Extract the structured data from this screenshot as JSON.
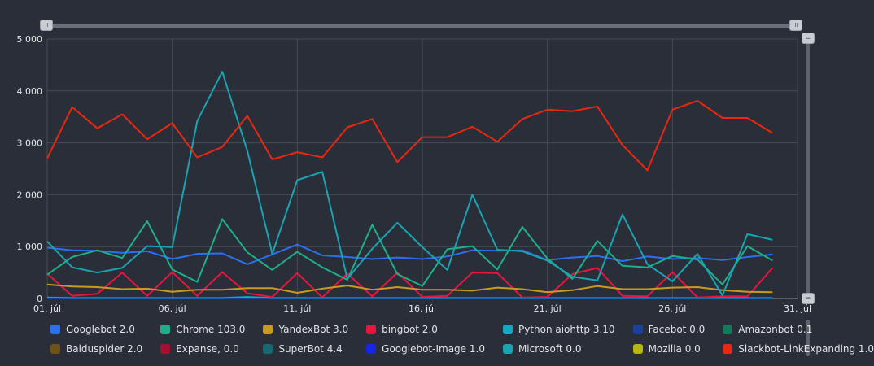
{
  "chart_data": {
    "type": "line",
    "ylim": [
      0,
      5000
    ],
    "yticks": [
      0,
      1000,
      2000,
      3000,
      4000,
      5000
    ],
    "ytick_labels": [
      "0",
      "1 000",
      "2 000",
      "3 000",
      "4 000",
      "5 000"
    ],
    "xtick_labels": [
      "01. júl",
      "06. júl",
      "11. júl",
      "16. júl",
      "21. júl",
      "26. júl",
      "31. júl"
    ],
    "x": [
      1,
      2,
      3,
      4,
      5,
      6,
      7,
      8,
      9,
      10,
      11,
      12,
      13,
      14,
      15,
      16,
      17,
      18,
      19,
      20,
      21,
      22,
      23,
      24,
      25,
      26,
      27,
      28,
      29,
      30,
      31
    ],
    "grid": true,
    "legend_position": "bottom",
    "series": [
      {
        "name": "Slackbot-LinkExpanding 1.0",
        "color": "#e8280f",
        "values": [
          2700,
          3690,
          3280,
          3550,
          3070,
          3380,
          2720,
          2920,
          3520,
          2680,
          2820,
          2720,
          3300,
          3460,
          2630,
          3110,
          3110,
          3310,
          3020,
          3460,
          3640,
          3610,
          3700,
          2960,
          2470,
          3640,
          3810,
          3480,
          3480,
          3190,
          null
        ]
      },
      {
        "name": "Microsoft 0.0",
        "color": "#1aa3b3",
        "values": [
          1100,
          600,
          500,
          590,
          1010,
          990,
          3420,
          4370,
          2850,
          860,
          2280,
          2440,
          380,
          960,
          1460,
          990,
          550,
          2000,
          940,
          910,
          730,
          420,
          350,
          1620,
          660,
          330,
          860,
          60,
          1240,
          1130,
          null
        ]
      },
      {
        "name": "Chrome 103.0",
        "color": "#1fae8c",
        "values": [
          460,
          800,
          930,
          780,
          1490,
          560,
          320,
          1530,
          890,
          550,
          900,
          600,
          360,
          1420,
          470,
          240,
          950,
          1010,
          560,
          1380,
          770,
          380,
          1110,
          630,
          600,
          820,
          750,
          270,
          1010,
          730,
          null
        ]
      },
      {
        "name": "Googlebot 2.0",
        "color": "#2d6ff0",
        "values": [
          980,
          930,
          920,
          880,
          910,
          760,
          860,
          870,
          660,
          850,
          1040,
          830,
          800,
          760,
          790,
          760,
          810,
          930,
          920,
          930,
          740,
          790,
          820,
          720,
          810,
          760,
          780,
          740,
          800,
          850,
          null
        ]
      },
      {
        "name": "YandexBot 3.0",
        "color": "#c99a22",
        "values": [
          270,
          230,
          220,
          180,
          190,
          130,
          170,
          170,
          200,
          200,
          110,
          190,
          250,
          170,
          220,
          170,
          170,
          150,
          210,
          180,
          120,
          160,
          240,
          180,
          180,
          210,
          220,
          160,
          130,
          120,
          null
        ]
      },
      {
        "name": "bingbot 2.0",
        "color": "#e8153e",
        "values": [
          480,
          50,
          90,
          500,
          50,
          510,
          50,
          510,
          100,
          30,
          490,
          20,
          480,
          40,
          500,
          30,
          50,
          500,
          490,
          20,
          30,
          470,
          590,
          50,
          40,
          510,
          20,
          40,
          40,
          590,
          null
        ]
      },
      {
        "name": "Python aiohttp 3.10",
        "color": "#14a9c2",
        "values": [
          20,
          10,
          10,
          10,
          10,
          10,
          10,
          10,
          30,
          10,
          10,
          10,
          10,
          10,
          10,
          10,
          10,
          10,
          10,
          10,
          10,
          10,
          10,
          10,
          10,
          10,
          10,
          10,
          10,
          10,
          null
        ]
      },
      {
        "name": "Facebot 0.0",
        "color": "#1b3f9c",
        "values": [
          0,
          0,
          0,
          0,
          0,
          0,
          0,
          0,
          0,
          0,
          0,
          0,
          0,
          0,
          0,
          0,
          0,
          0,
          0,
          0,
          0,
          0,
          0,
          0,
          0,
          0,
          0,
          0,
          0,
          0,
          null
        ]
      },
      {
        "name": "Amazonbot 0.1",
        "color": "#127a5a",
        "values": [
          0,
          0,
          0,
          0,
          0,
          0,
          0,
          0,
          0,
          0,
          0,
          0,
          0,
          0,
          0,
          0,
          0,
          0,
          0,
          0,
          0,
          0,
          0,
          0,
          0,
          0,
          0,
          0,
          0,
          0,
          null
        ]
      },
      {
        "name": "Baiduspider 2.0",
        "color": "#6e5216",
        "values": [
          0,
          0,
          0,
          0,
          0,
          0,
          0,
          0,
          0,
          0,
          0,
          0,
          0,
          0,
          0,
          0,
          0,
          0,
          0,
          0,
          0,
          0,
          0,
          0,
          0,
          0,
          0,
          0,
          0,
          0,
          null
        ]
      },
      {
        "name": "Expanse, 0.0",
        "color": "#a5102e",
        "values": [
          0,
          0,
          0,
          0,
          0,
          0,
          0,
          0,
          0,
          0,
          0,
          0,
          0,
          0,
          0,
          0,
          0,
          0,
          0,
          0,
          0,
          0,
          0,
          0,
          0,
          0,
          0,
          0,
          0,
          0,
          null
        ]
      },
      {
        "name": "SuperBot 4.4",
        "color": "#136a74",
        "values": [
          0,
          0,
          0,
          0,
          0,
          0,
          0,
          0,
          0,
          0,
          0,
          0,
          0,
          0,
          0,
          0,
          0,
          0,
          0,
          0,
          0,
          0,
          0,
          0,
          0,
          0,
          0,
          0,
          0,
          0,
          null
        ]
      },
      {
        "name": "Googlebot-Image 1.0",
        "color": "#1526e6",
        "values": [
          0,
          0,
          0,
          0,
          0,
          0,
          0,
          0,
          0,
          0,
          0,
          0,
          0,
          0,
          0,
          0,
          0,
          0,
          0,
          0,
          0,
          0,
          0,
          0,
          0,
          0,
          0,
          0,
          0,
          0,
          null
        ]
      },
      {
        "name": "Mozilla 0.0",
        "color": "#b8b60e",
        "values": [
          0,
          0,
          0,
          0,
          0,
          0,
          0,
          0,
          0,
          0,
          0,
          0,
          0,
          0,
          0,
          0,
          0,
          0,
          0,
          0,
          0,
          0,
          0,
          0,
          0,
          0,
          0,
          0,
          0,
          0,
          null
        ]
      }
    ]
  },
  "legend": [
    {
      "name": "Googlebot 2.0",
      "color": "#2d6ff0"
    },
    {
      "name": "Chrome 103.0",
      "color": "#1fae8c"
    },
    {
      "name": "YandexBot 3.0",
      "color": "#c99a22"
    },
    {
      "name": "bingbot 2.0",
      "color": "#e8153e"
    },
    {
      "name": "Python aiohttp 3.10",
      "color": "#14a9c2"
    },
    {
      "name": "Facebot 0.0",
      "color": "#1b3f9c"
    },
    {
      "name": "Amazonbot 0.1",
      "color": "#127a5a"
    },
    {
      "name": "Baiduspider 2.0",
      "color": "#6e5216"
    },
    {
      "name": "Expanse, 0.0",
      "color": "#a5102e"
    },
    {
      "name": "SuperBot 4.4",
      "color": "#136a74"
    },
    {
      "name": "Googlebot-Image 1.0",
      "color": "#1526e6"
    },
    {
      "name": "Microsoft 0.0",
      "color": "#1aa3b3"
    },
    {
      "name": "Mozilla 0.0",
      "color": "#b8b60e"
    },
    {
      "name": "Slackbot-LinkExpanding 1.0",
      "color": "#e8280f"
    }
  ]
}
